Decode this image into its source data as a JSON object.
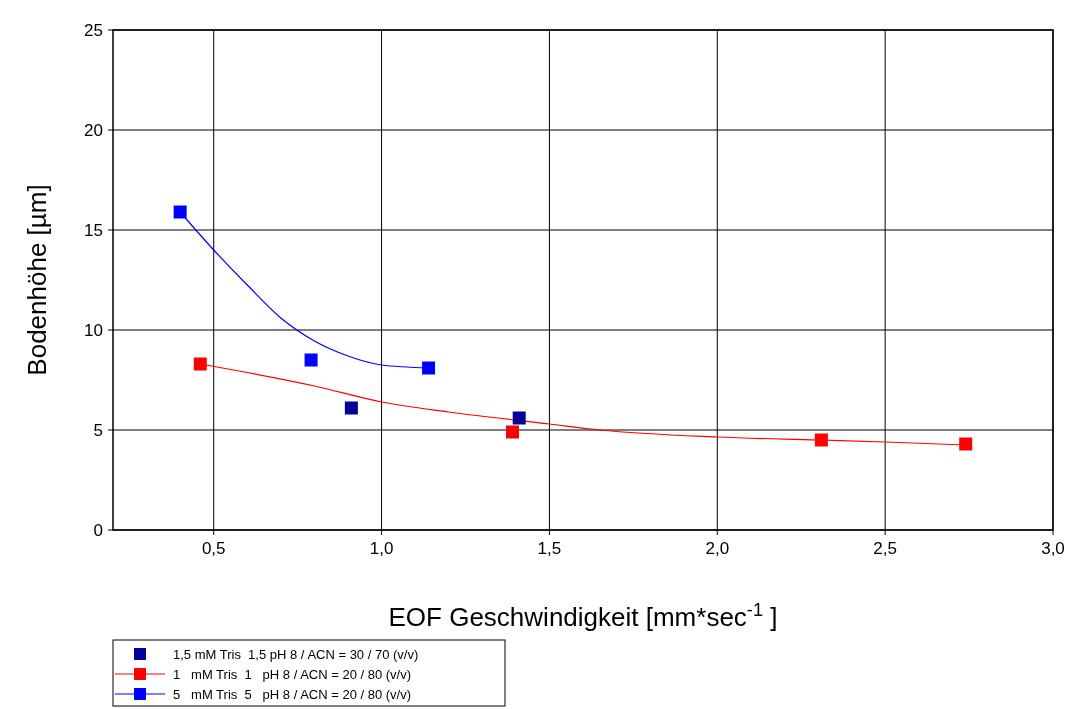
{
  "chart_data": {
    "type": "scatter",
    "xlabel": "EOF Geschwindigkeit [mm*sec$^{-1}$ ]",
    "ylabel": "Bodenhöhe [µm]",
    "xlim": [
      0.2,
      3.0
    ],
    "ylim": [
      0,
      25
    ],
    "xticks": [
      {
        "value": 0.5,
        "label": "0,5"
      },
      {
        "value": 1.0,
        "label": "1,0"
      },
      {
        "value": 1.5,
        "label": "1,5"
      },
      {
        "value": 2.0,
        "label": "2,0"
      },
      {
        "value": 2.5,
        "label": "2,5"
      },
      {
        "value": 3.0,
        "label": "3,0"
      }
    ],
    "yticks": [
      0,
      5,
      10,
      15,
      20,
      25
    ],
    "grid": true,
    "legend": "bottom left",
    "marker": "square",
    "series": [
      {
        "name": "1,5 mM Tris  1,5 pH 8 / ACN = 30 / 70 (v/v)",
        "color": "#000099",
        "x": [
          0.91,
          1.41
        ],
        "values": [
          6.1,
          5.6
        ]
      },
      {
        "name": "1   mM Tris  1   pH 8 / ACN = 20 / 80 (v/v)",
        "color": "#ff0000",
        "x": [
          0.46,
          1.39,
          2.31,
          2.74
        ],
        "values": [
          8.3,
          4.9,
          4.5,
          4.3
        ]
      },
      {
        "name": "5   mM Tris  5   pH 8 / ACN = 20 / 80 (v/v)",
        "color": "#0000ff",
        "x": [
          0.4,
          0.79,
          1.14
        ],
        "values": [
          15.9,
          8.5,
          8.1
        ]
      },
      {
        "type": "line",
        "marker": "none",
        "color": "#ff0000",
        "x": [
          0.46,
          0.8,
          1.0,
          1.2,
          1.5,
          1.65,
          2.0,
          2.3,
          2.5,
          2.74
        ],
        "values": [
          8.3,
          7.2,
          6.4,
          5.9,
          5.3,
          5.0,
          4.65,
          4.5,
          4.4,
          4.25
        ]
      },
      {
        "type": "line",
        "marker": "none",
        "color": "#0000ff",
        "x": [
          0.4,
          0.5,
          0.6,
          0.7,
          0.8,
          0.9,
          1.0,
          1.14
        ],
        "values": [
          15.9,
          14.0,
          12.25,
          10.6,
          9.45,
          8.7,
          8.25,
          8.1
        ]
      }
    ]
  }
}
